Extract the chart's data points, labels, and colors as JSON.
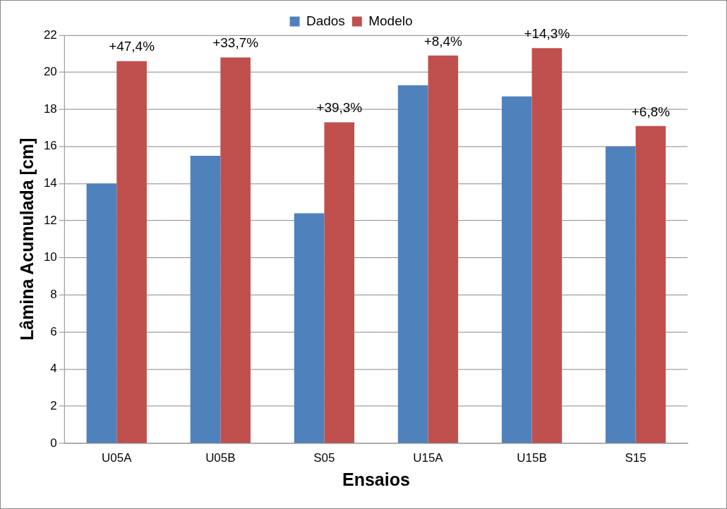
{
  "chart_data": {
    "type": "bar",
    "xlabel": "Ensaios",
    "ylabel": "Lâmina Acumulada [cm]",
    "categories": [
      "U05A",
      "U05B",
      "S05",
      "U15A",
      "U15B",
      "S15"
    ],
    "series": [
      {
        "name": "Dados",
        "color": "#4f81bd",
        "values": [
          14.0,
          15.5,
          12.4,
          19.3,
          18.7,
          16.0
        ]
      },
      {
        "name": "Modelo",
        "color": "#c0504d",
        "values": [
          20.6,
          20.8,
          17.3,
          20.9,
          21.3,
          17.1
        ]
      }
    ],
    "ylim": [
      0,
      22
    ],
    "yticks": [
      0,
      2,
      4,
      6,
      8,
      10,
      12,
      14,
      16,
      18,
      20,
      22
    ],
    "grid": "y",
    "legend": "top",
    "annotations": [
      {
        "text": "+47,4%",
        "x": "U05A",
        "y": 20.6
      },
      {
        "text": "+33,7%",
        "x": "U05B",
        "y": 20.8
      },
      {
        "text": "+39,3%",
        "x": "S05",
        "y": 17.3
      },
      {
        "text": "+8,4%",
        "x": "U15A",
        "y": 20.9
      },
      {
        "text": "+14,3%",
        "x": "U15B",
        "y": 21.3
      },
      {
        "text": "+6,8%",
        "x": "S15",
        "y": 17.1
      }
    ]
  }
}
